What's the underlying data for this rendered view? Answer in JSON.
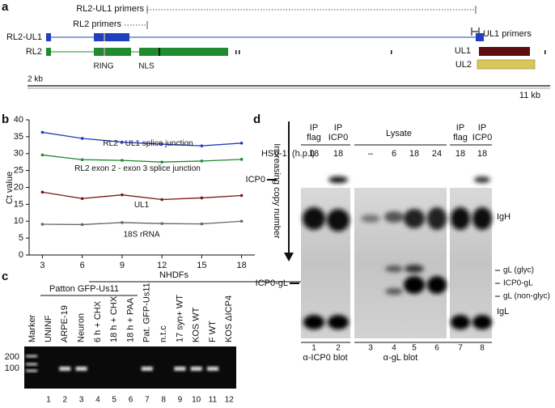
{
  "panel_labels": [
    "a",
    "b",
    "c",
    "d"
  ],
  "panel_a": {
    "primers": [
      "RL2-UL1 primers",
      "RL2 primers",
      "UL1 primers"
    ],
    "transcripts": [
      "RL2-UL1",
      "RL2",
      "UL1",
      "UL2"
    ],
    "domains": [
      "RING",
      "NLS"
    ],
    "scale": [
      "2 kb",
      "11 kb"
    ]
  },
  "chart_data": {
    "type": "line",
    "ylabel": "Ct value",
    "annotation": "Increasing copy number",
    "x": [
      3,
      6,
      9,
      12,
      15,
      18
    ],
    "xlim": [
      2,
      19
    ],
    "xticks": [
      3,
      6,
      9,
      12,
      15,
      18
    ],
    "ylim": [
      0,
      40
    ],
    "yticks": [
      0,
      5,
      10,
      15,
      20,
      25,
      30,
      35,
      40
    ],
    "series": [
      {
        "name": "RL2 - UL1 splice junction",
        "color": "#1f3fbf",
        "values": [
          36.3,
          34.5,
          33.4,
          32.8,
          32.3,
          33.1
        ]
      },
      {
        "name": "RL2 exon 2 - exon 3 splice junction",
        "color": "#1f8a2e",
        "values": [
          29.6,
          28.2,
          28.0,
          27.5,
          27.8,
          28.3
        ]
      },
      {
        "name": "UL1",
        "color": "#7a1616",
        "values": [
          18.6,
          16.7,
          17.8,
          16.4,
          16.9,
          17.6
        ]
      },
      {
        "name": "18S rRNA",
        "color": "#666666",
        "values": [
          9.1,
          9.0,
          9.6,
          9.3,
          9.2,
          10.0
        ]
      }
    ]
  },
  "panel_c": {
    "groups": [
      "NHDFs",
      "Patton GFP-Us11"
    ],
    "lanes": [
      "Marker",
      "UNINF",
      "ARPE-19",
      "Neuron",
      "6 h + CHX",
      "18 h + CHX",
      "18 h + PAA",
      "Pat. GFP-Us11",
      "n.t.c",
      "17 syn+ WT",
      "KOS WT",
      "F WT",
      "KOS ΔICP4"
    ],
    "numbers": [
      "1",
      "2",
      "3",
      "4",
      "5",
      "6",
      "7",
      "8",
      "9",
      "10",
      "11",
      "12"
    ],
    "sizes": [
      "200",
      "100"
    ]
  },
  "panel_d": {
    "ip_headers": [
      [
        "IP",
        "flag"
      ],
      [
        "IP",
        "ICP0"
      ],
      [
        "IP",
        "flag"
      ],
      [
        "IP",
        "ICP0"
      ]
    ],
    "lysate": "Lysate",
    "hsv_label": "HSV-1: (h.p.i)",
    "times": [
      "18",
      "18",
      "–",
      "6",
      "18",
      "24",
      "18",
      "18"
    ],
    "left_labels": [
      "ICP0",
      "ICP0-gL"
    ],
    "right_labels": [
      "IgH",
      "gL (glyc)",
      "ICP0-gL",
      "gL (non-glyc)",
      "IgL"
    ],
    "lanes": [
      "1",
      "2",
      "3",
      "4",
      "5",
      "6",
      "7",
      "8"
    ],
    "blots": [
      "α-ICP0 blot",
      "α-gL blot"
    ]
  }
}
